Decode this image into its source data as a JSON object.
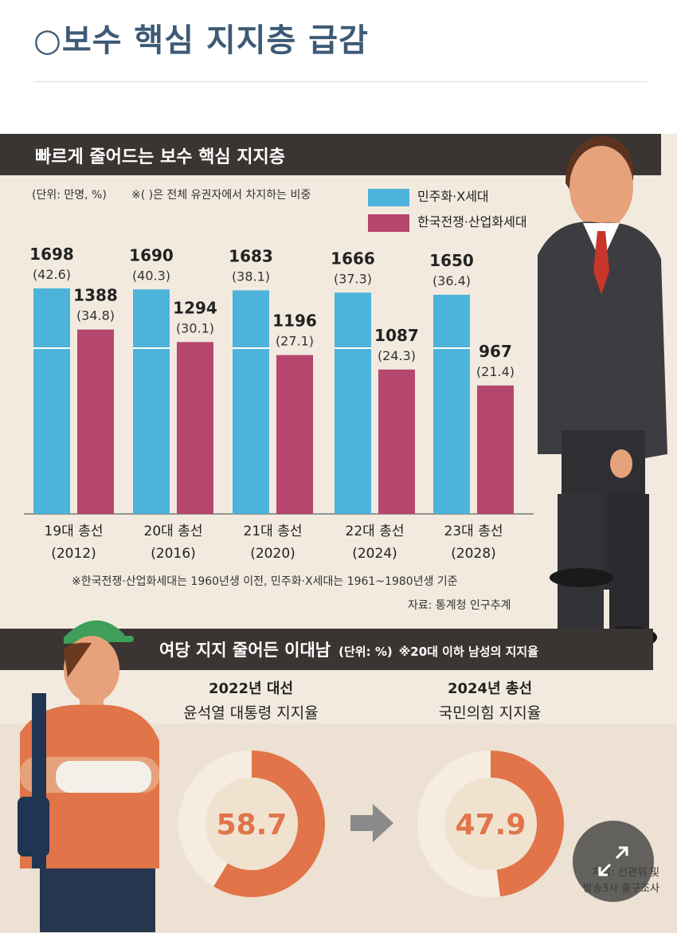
{
  "page": {
    "title": "○보수 핵심 지지층 급감"
  },
  "section1": {
    "heading": "빠르게 줄어드는 보수 핵심 지지층",
    "unit": "(단위: 만명, %)",
    "share_note": "※( )은 전체 유권자에서 차지하는 비중",
    "footnote": "※한국전쟁·산업화세대는 1960년생 이전, 민주화·X세대는 1961~1980년생 기준",
    "source": "자료: 통계청 인구추계"
  },
  "section2": {
    "heading": "여당 지지 줄어든 이대남",
    "unit": "(단위: %)",
    "note": "※20대 이하 남성의 지지율",
    "source_line1": "자료: 선관위 및",
    "source_line2": "방송3사 출구조사"
  },
  "colors": {
    "blue": "#4db3da",
    "magenta": "#b5466e",
    "orange": "#e17449",
    "donut_light": "#f6ece0",
    "donut_inner": "#f0e2cf"
  },
  "icons": {
    "expand": "expand-arrows-icon",
    "arrow": "right-arrow-icon"
  },
  "chart_data": [
    {
      "type": "bar",
      "categories": [
        "19대 총선 (2012)",
        "20대 총선 (2016)",
        "21대 총선 (2020)",
        "22대 총선 (2024)",
        "23대 총선 (2028)"
      ],
      "category_lines": [
        [
          "19대 총선",
          "(2012)"
        ],
        [
          "20대 총선",
          "(2016)"
        ],
        [
          "21대 총선",
          "(2020)"
        ],
        [
          "22대 총선",
          "(2024)"
        ],
        [
          "23대 총선",
          "(2028)"
        ]
      ],
      "series": [
        {
          "name": "민주화·X세대",
          "values": [
            1698,
            1690,
            1683,
            1666,
            1650
          ],
          "shares": [
            "(42.6)",
            "(40.3)",
            "(38.1)",
            "(37.3)",
            "(36.4)"
          ]
        },
        {
          "name": "한국전쟁·산업화세대",
          "values": [
            1388,
            1294,
            1196,
            1087,
            967
          ],
          "shares": [
            "(34.8)",
            "(30.1)",
            "(27.1)",
            "(24.3)",
            "(21.4)"
          ]
        }
      ],
      "ylim": [
        0,
        1750
      ]
    },
    {
      "type": "pie",
      "title": "2022년 대선",
      "subtitle": "윤석열 대통령 지지율",
      "value": 58.7,
      "label": "58.7"
    },
    {
      "type": "pie",
      "title": "2024년 총선",
      "subtitle": "국민의힘 지지율",
      "value": 47.9,
      "label": "47.9"
    }
  ]
}
